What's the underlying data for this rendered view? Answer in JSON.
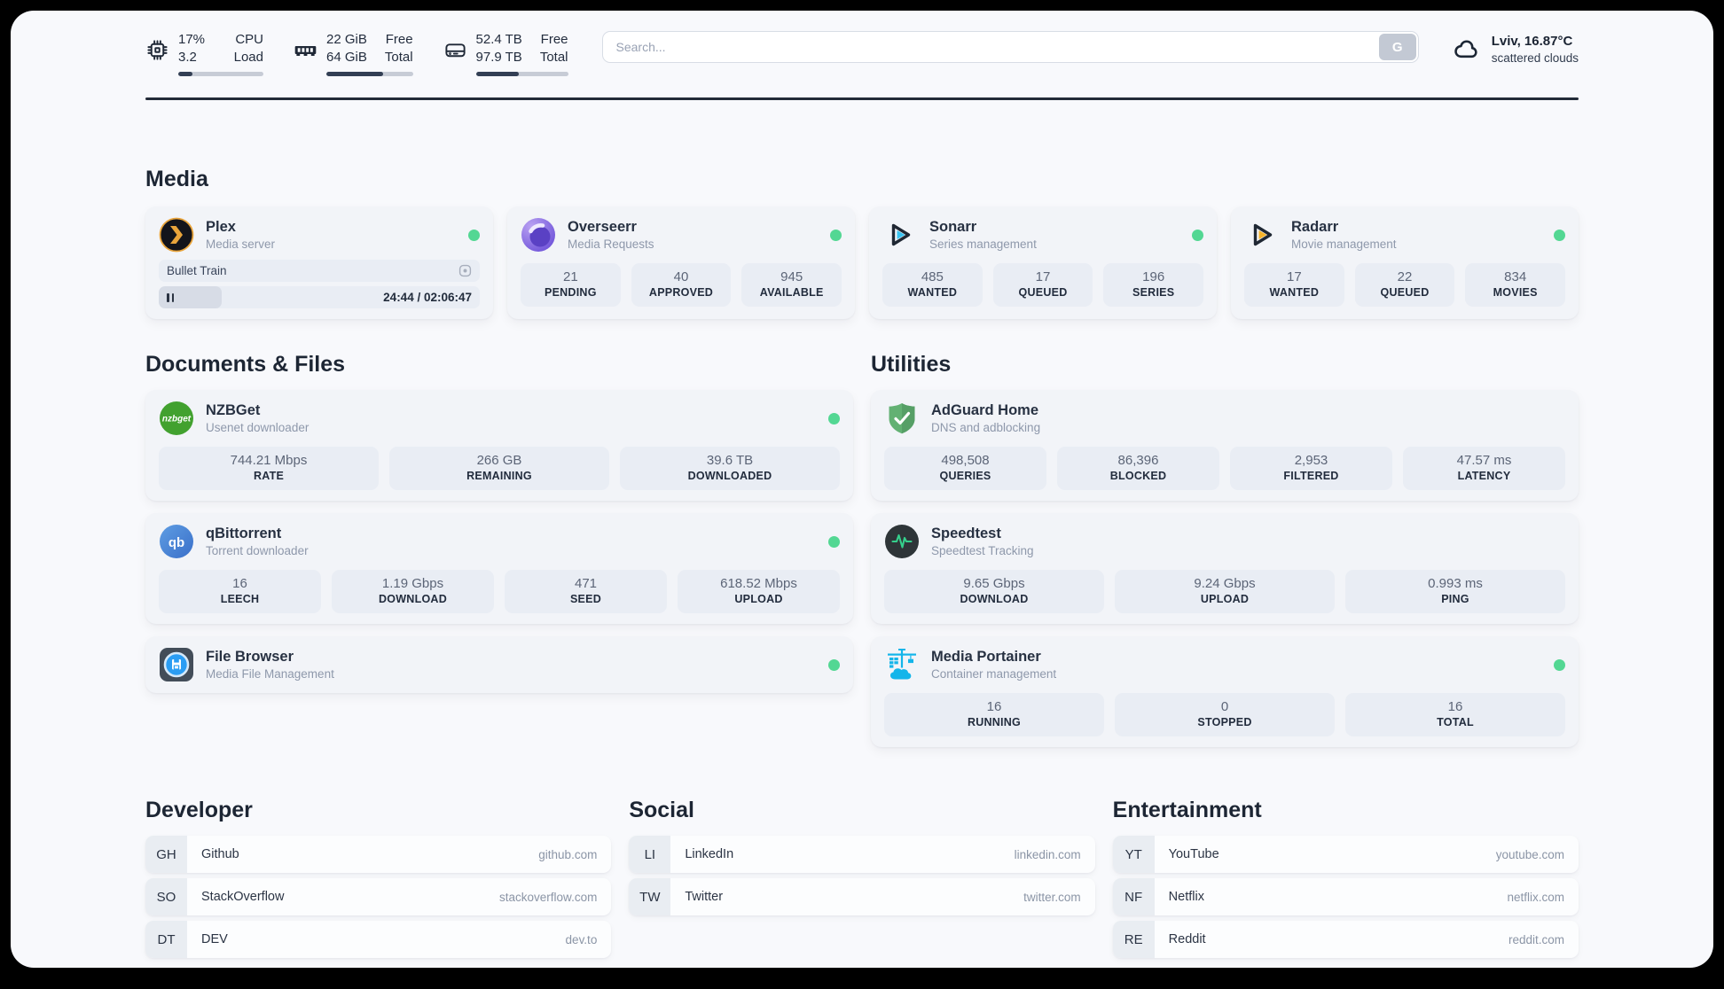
{
  "header": {
    "system_stats": [
      {
        "icon": "cpu-icon",
        "value_top": "17%",
        "label_top": "CPU",
        "value_bottom": "3.2",
        "label_bottom": "Load",
        "progress_pct": 17
      },
      {
        "icon": "ram-icon",
        "value_top": "22 GiB",
        "label_top": "Free",
        "value_bottom": "64 GiB",
        "label_bottom": "Total",
        "progress_pct": 66
      },
      {
        "icon": "disk-icon",
        "value_top": "52.4 TB",
        "label_top": "Free",
        "value_bottom": "97.9 TB",
        "label_bottom": "Total",
        "progress_pct": 46.5
      }
    ],
    "search": {
      "placeholder": "Search...",
      "button_label": "G"
    },
    "weather": {
      "location": "Lviv, 16.87°C",
      "condition": "scattered clouds"
    }
  },
  "sections": {
    "media": "Media",
    "documents": "Documents & Files",
    "utilities": "Utilities",
    "developer": "Developer",
    "social": "Social",
    "entertainment": "Entertainment"
  },
  "services": {
    "plex": {
      "name": "Plex",
      "desc": "Media server",
      "status": "online",
      "player": {
        "title": "Bullet Train",
        "time": "24:44 / 02:06:47",
        "progress_pct": 19.5
      }
    },
    "overseerr": {
      "name": "Overseerr",
      "desc": "Media Requests",
      "status": "online",
      "stats": [
        {
          "value": "21",
          "label": "PENDING"
        },
        {
          "value": "40",
          "label": "APPROVED"
        },
        {
          "value": "945",
          "label": "AVAILABLE"
        }
      ]
    },
    "sonarr": {
      "name": "Sonarr",
      "desc": "Series management",
      "status": "online",
      "stats": [
        {
          "value": "485",
          "label": "WANTED"
        },
        {
          "value": "17",
          "label": "QUEUED"
        },
        {
          "value": "196",
          "label": "SERIES"
        }
      ]
    },
    "radarr": {
      "name": "Radarr",
      "desc": "Movie management",
      "status": "online",
      "stats": [
        {
          "value": "17",
          "label": "WANTED"
        },
        {
          "value": "22",
          "label": "QUEUED"
        },
        {
          "value": "834",
          "label": "MOVIES"
        }
      ]
    },
    "nzbget": {
      "name": "NZBGet",
      "desc": "Usenet downloader",
      "status": "online",
      "stats": [
        {
          "value": "744.21 Mbps",
          "label": "RATE"
        },
        {
          "value": "266 GB",
          "label": "REMAINING"
        },
        {
          "value": "39.6 TB",
          "label": "DOWNLOADED"
        }
      ]
    },
    "qbittorrent": {
      "name": "qBittorrent",
      "desc": "Torrent downloader",
      "status": "online",
      "stats": [
        {
          "value": "16",
          "label": "LEECH"
        },
        {
          "value": "1.19 Gbps",
          "label": "DOWNLOAD"
        },
        {
          "value": "471",
          "label": "SEED"
        },
        {
          "value": "618.52 Mbps",
          "label": "UPLOAD"
        }
      ]
    },
    "filebrowser": {
      "name": "File Browser",
      "desc": "Media File Management",
      "status": "online"
    },
    "adguard": {
      "name": "AdGuard Home",
      "desc": "DNS and adblocking",
      "stats": [
        {
          "value": "498,508",
          "label": "QUERIES"
        },
        {
          "value": "86,396",
          "label": "BLOCKED"
        },
        {
          "value": "2,953",
          "label": "FILTERED"
        },
        {
          "value": "47.57 ms",
          "label": "LATENCY"
        }
      ]
    },
    "speedtest": {
      "name": "Speedtest",
      "desc": "Speedtest Tracking",
      "stats": [
        {
          "value": "9.65 Gbps",
          "label": "DOWNLOAD"
        },
        {
          "value": "9.24 Gbps",
          "label": "UPLOAD"
        },
        {
          "value": "0.993 ms",
          "label": "PING"
        }
      ]
    },
    "portainer": {
      "name": "Media Portainer",
      "desc": "Container management",
      "status": "online",
      "stats": [
        {
          "value": "16",
          "label": "RUNNING"
        },
        {
          "value": "0",
          "label": "STOPPED"
        },
        {
          "value": "16",
          "label": "TOTAL"
        }
      ]
    }
  },
  "bookmarks": {
    "developer": {
      "links": [
        {
          "abbr": "GH",
          "name": "Github",
          "url": "github.com"
        },
        {
          "abbr": "SO",
          "name": "StackOverflow",
          "url": "stackoverflow.com"
        },
        {
          "abbr": "DT",
          "name": "DEV",
          "url": "dev.to"
        }
      ]
    },
    "social": {
      "links": [
        {
          "abbr": "LI",
          "name": "LinkedIn",
          "url": "linkedin.com"
        },
        {
          "abbr": "TW",
          "name": "Twitter",
          "url": "twitter.com"
        }
      ]
    },
    "entertainment": {
      "links": [
        {
          "abbr": "YT",
          "name": "YouTube",
          "url": "youtube.com"
        },
        {
          "abbr": "NF",
          "name": "Netflix",
          "url": "netflix.com"
        },
        {
          "abbr": "RE",
          "name": "Reddit",
          "url": "reddit.com"
        }
      ]
    }
  },
  "colors": {
    "status_online": "#53d793",
    "divider": "#232b38",
    "plex_gold": "#e9a43b",
    "overseerr_purple": "#7a5cd9",
    "sonarr_cyan": "#38c3f1",
    "radarr_yellow": "#f6b32a",
    "nzbget_green": "#42a12f",
    "qbittorrent_blue": "#4787d6",
    "filebrowser_blue": "#2b9df3",
    "adguard_green": "#63b173",
    "speedtest_green": "#35d08c",
    "portainer_blue": "#13b5ea"
  }
}
